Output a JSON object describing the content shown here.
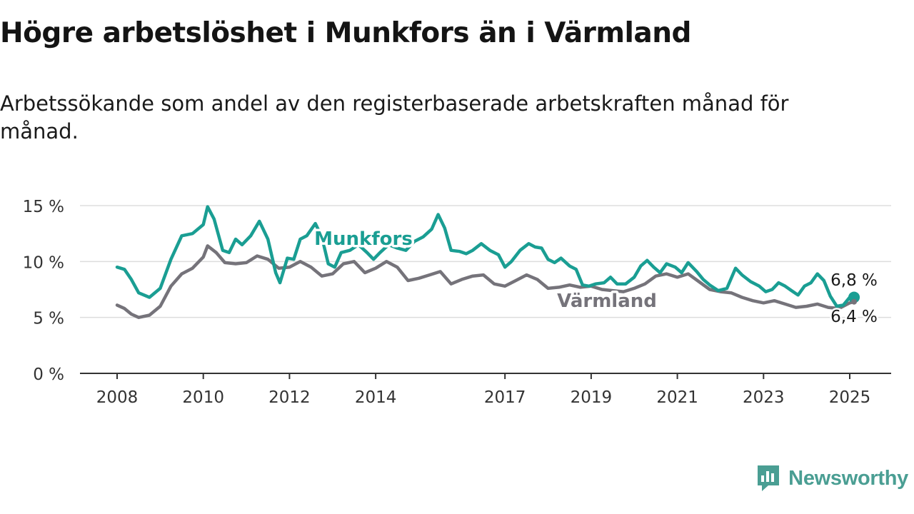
{
  "title": "Högre arbetslöshet i Munkfors än i Värmland",
  "subtitle": "Arbetssökande som andel av den registerbaserade arbetskraften månad för månad.",
  "brand": {
    "name": "Newsworthy",
    "icon": "newsworthy-logo-icon"
  },
  "colors": {
    "munkfors": "#1a9e93",
    "varmland": "#75737a",
    "grid": "#dddddd",
    "axis": "#333333",
    "brand": "#4a9e93"
  },
  "chart_data": {
    "type": "line",
    "ylim": [
      0,
      15
    ],
    "xlim": [
      2008,
      2025.5
    ],
    "y_ticks": [
      0,
      5,
      10,
      15
    ],
    "y_tick_labels": [
      "0 %",
      "5 %",
      "10 %",
      "15 %"
    ],
    "x_ticks": [
      2008,
      2010,
      2012,
      2014,
      2017,
      2019,
      2021,
      2023,
      2025
    ],
    "x_tick_labels": [
      "2008",
      "2010",
      "2012",
      "2014",
      "2017",
      "2019",
      "2021",
      "2023",
      "2025"
    ],
    "grid": "horizontal",
    "series": [
      {
        "name": "Munkfors",
        "color": "#1a9e93",
        "end_label": "6,8 %",
        "points": [
          [
            2008.0,
            9.5
          ],
          [
            2008.17,
            9.3
          ],
          [
            2008.33,
            8.4
          ],
          [
            2008.5,
            7.2
          ],
          [
            2008.75,
            6.8
          ],
          [
            2009.0,
            7.6
          ],
          [
            2009.25,
            10.2
          ],
          [
            2009.5,
            12.3
          ],
          [
            2009.75,
            12.5
          ],
          [
            2010.0,
            13.3
          ],
          [
            2010.1,
            14.9
          ],
          [
            2010.25,
            13.8
          ],
          [
            2010.45,
            11.0
          ],
          [
            2010.6,
            10.8
          ],
          [
            2010.75,
            12.0
          ],
          [
            2010.9,
            11.5
          ],
          [
            2011.1,
            12.3
          ],
          [
            2011.3,
            13.6
          ],
          [
            2011.5,
            12.0
          ],
          [
            2011.68,
            9.0
          ],
          [
            2011.78,
            8.1
          ],
          [
            2011.95,
            10.3
          ],
          [
            2012.1,
            10.2
          ],
          [
            2012.25,
            12.0
          ],
          [
            2012.4,
            12.3
          ],
          [
            2012.6,
            13.4
          ],
          [
            2012.75,
            12.2
          ],
          [
            2012.9,
            9.8
          ],
          [
            2013.05,
            9.5
          ],
          [
            2013.2,
            10.8
          ],
          [
            2013.4,
            11.0
          ],
          [
            2013.6,
            11.5
          ],
          [
            2013.8,
            10.8
          ],
          [
            2013.95,
            10.2
          ],
          [
            2014.1,
            10.8
          ],
          [
            2014.3,
            11.5
          ],
          [
            2014.5,
            11.2
          ],
          [
            2014.7,
            11.0
          ],
          [
            2014.9,
            11.8
          ],
          [
            2015.1,
            12.2
          ],
          [
            2015.3,
            12.9
          ],
          [
            2015.45,
            14.2
          ],
          [
            2015.6,
            13.0
          ],
          [
            2015.75,
            11.0
          ],
          [
            2015.95,
            10.9
          ],
          [
            2016.1,
            10.7
          ],
          [
            2016.25,
            11.0
          ],
          [
            2016.45,
            11.6
          ],
          [
            2016.65,
            11.0
          ],
          [
            2016.85,
            10.6
          ],
          [
            2017.0,
            9.5
          ],
          [
            2017.15,
            10.0
          ],
          [
            2017.35,
            11.0
          ],
          [
            2017.55,
            11.6
          ],
          [
            2017.7,
            11.3
          ],
          [
            2017.85,
            11.2
          ],
          [
            2018.0,
            10.2
          ],
          [
            2018.15,
            9.9
          ],
          [
            2018.3,
            10.3
          ],
          [
            2018.5,
            9.6
          ],
          [
            2018.65,
            9.3
          ],
          [
            2018.8,
            7.9
          ],
          [
            2018.95,
            7.8
          ],
          [
            2019.1,
            8.0
          ],
          [
            2019.3,
            8.1
          ],
          [
            2019.45,
            8.6
          ],
          [
            2019.6,
            8.0
          ],
          [
            2019.8,
            8.0
          ],
          [
            2020.0,
            8.6
          ],
          [
            2020.15,
            9.6
          ],
          [
            2020.3,
            10.1
          ],
          [
            2020.45,
            9.5
          ],
          [
            2020.6,
            9.0
          ],
          [
            2020.75,
            9.8
          ],
          [
            2020.95,
            9.5
          ],
          [
            2021.1,
            9.0
          ],
          [
            2021.25,
            9.9
          ],
          [
            2021.45,
            9.1
          ],
          [
            2021.6,
            8.4
          ],
          [
            2021.75,
            7.9
          ],
          [
            2021.95,
            7.4
          ],
          [
            2022.15,
            7.6
          ],
          [
            2022.35,
            9.4
          ],
          [
            2022.5,
            8.8
          ],
          [
            2022.7,
            8.2
          ],
          [
            2022.9,
            7.8
          ],
          [
            2023.05,
            7.3
          ],
          [
            2023.2,
            7.5
          ],
          [
            2023.35,
            8.1
          ],
          [
            2023.5,
            7.8
          ],
          [
            2023.65,
            7.4
          ],
          [
            2023.8,
            7.0
          ],
          [
            2023.95,
            7.8
          ],
          [
            2024.1,
            8.1
          ],
          [
            2024.25,
            8.9
          ],
          [
            2024.4,
            8.3
          ],
          [
            2024.55,
            6.9
          ],
          [
            2024.7,
            6.0
          ],
          [
            2024.85,
            6.1
          ],
          [
            2025.0,
            6.8
          ],
          [
            2025.1,
            6.8
          ]
        ]
      },
      {
        "name": "Värmland",
        "color": "#75737a",
        "end_label": "6,4 %",
        "points": [
          [
            2008.0,
            6.1
          ],
          [
            2008.17,
            5.8
          ],
          [
            2008.33,
            5.3
          ],
          [
            2008.5,
            5.0
          ],
          [
            2008.75,
            5.2
          ],
          [
            2009.0,
            6.0
          ],
          [
            2009.25,
            7.8
          ],
          [
            2009.5,
            8.9
          ],
          [
            2009.75,
            9.4
          ],
          [
            2010.0,
            10.4
          ],
          [
            2010.1,
            11.4
          ],
          [
            2010.3,
            10.8
          ],
          [
            2010.5,
            9.9
          ],
          [
            2010.75,
            9.8
          ],
          [
            2011.0,
            9.9
          ],
          [
            2011.25,
            10.5
          ],
          [
            2011.5,
            10.2
          ],
          [
            2011.75,
            9.4
          ],
          [
            2012.0,
            9.5
          ],
          [
            2012.25,
            10.0
          ],
          [
            2012.5,
            9.5
          ],
          [
            2012.75,
            8.7
          ],
          [
            2013.0,
            8.9
          ],
          [
            2013.25,
            9.8
          ],
          [
            2013.5,
            10.0
          ],
          [
            2013.75,
            9.0
          ],
          [
            2014.0,
            9.4
          ],
          [
            2014.25,
            10.0
          ],
          [
            2014.5,
            9.5
          ],
          [
            2014.75,
            8.3
          ],
          [
            2015.0,
            8.5
          ],
          [
            2015.25,
            8.8
          ],
          [
            2015.5,
            9.1
          ],
          [
            2015.75,
            8.0
          ],
          [
            2016.0,
            8.4
          ],
          [
            2016.25,
            8.7
          ],
          [
            2016.5,
            8.8
          ],
          [
            2016.75,
            8.0
          ],
          [
            2017.0,
            7.8
          ],
          [
            2017.25,
            8.3
          ],
          [
            2017.5,
            8.8
          ],
          [
            2017.75,
            8.4
          ],
          [
            2018.0,
            7.6
          ],
          [
            2018.25,
            7.7
          ],
          [
            2018.5,
            7.9
          ],
          [
            2018.75,
            7.7
          ],
          [
            2019.0,
            7.8
          ],
          [
            2019.25,
            7.5
          ],
          [
            2019.5,
            7.4
          ],
          [
            2019.75,
            7.3
          ],
          [
            2020.0,
            7.6
          ],
          [
            2020.25,
            8.0
          ],
          [
            2020.5,
            8.7
          ],
          [
            2020.75,
            8.9
          ],
          [
            2021.0,
            8.6
          ],
          [
            2021.25,
            8.9
          ],
          [
            2021.5,
            8.2
          ],
          [
            2021.75,
            7.5
          ],
          [
            2022.0,
            7.3
          ],
          [
            2022.25,
            7.2
          ],
          [
            2022.5,
            6.8
          ],
          [
            2022.75,
            6.5
          ],
          [
            2023.0,
            6.3
          ],
          [
            2023.25,
            6.5
          ],
          [
            2023.5,
            6.2
          ],
          [
            2023.75,
            5.9
          ],
          [
            2024.0,
            6.0
          ],
          [
            2024.25,
            6.2
          ],
          [
            2024.5,
            5.9
          ],
          [
            2024.75,
            5.8
          ],
          [
            2025.0,
            6.3
          ],
          [
            2025.1,
            6.4
          ]
        ]
      }
    ]
  }
}
